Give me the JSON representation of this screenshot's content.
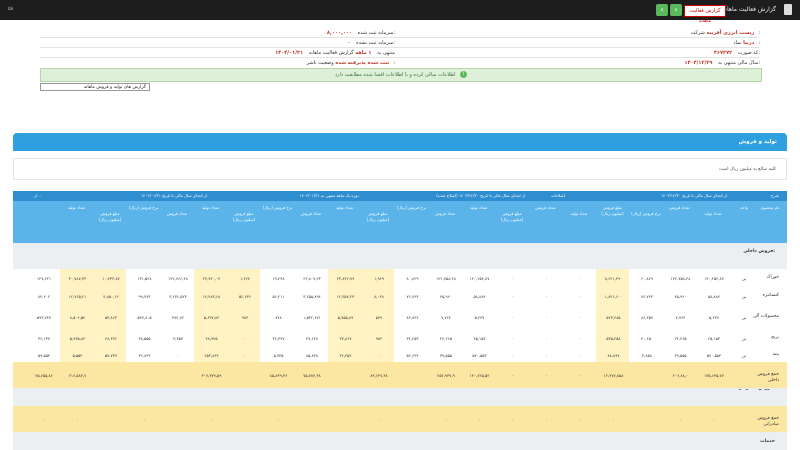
{
  "topbar": {
    "title": "گزارش فعالیت ماهانه",
    "badge": "گزارش فعالیت ماهانه",
    "left_text": "۵۸"
  },
  "info": {
    "company_label": "شرکت:",
    "company_value": "زیست انرژی آفرینه",
    "symbol_label": "نماد:",
    "symbol_value": "دزیتا",
    "code_label": "کد صورت:",
    "code_value": "۴۶۷۳۷۲",
    "year_label": "سال مالی منتهی به:",
    "year_value": "۱۴۰۴/۱۲/۲۹",
    "capital_label": "سرمایه ثبت شده:",
    "capital_value": "۸,۰۰۰,۰۰۰",
    "capital2_label": "سرمایه ثبت نشده:",
    "capital2_value": "۰",
    "report_label": "گزارش فعالیت ماهانه",
    "period_label": "۱ ماهه",
    "period_end_label": "منتهی به",
    "period_end": "۱۴۰۴/۰۱/۳۱",
    "status_label": "وضعیت ناشر:",
    "status_value": "ثبت شده پذیرفته شده",
    "ok_message": "اطلاعات سالی کرده و با اطلاعات افشا شده مطابقت دارد",
    "select_value": "گزارش های تولید و فروش ماهانه"
  },
  "panel": {
    "title": "تولید و فروش",
    "note": "کلیه مبالغ به میلیون ریال است"
  },
  "table": {
    "group_headers": [
      "شرح",
      "از ابتدای سال مالی تا تاریخ ۱۴۰۳/۱۲/۳۰",
      "اصلاحات",
      "از ابتدای سال مالی تا تاریخ ۱۴۰۳/۱۲/۳۰ (اصلاح شده)",
      "دوره یک ماهه منتهی به ۱۴۰۴/۰۱/۳۱",
      "از ابتدای سال مالی تا تاریخ ۱۴۰۴/۰۱/۳۱",
      "از ..."
    ],
    "col_headers": [
      "نام محصول",
      "واحد",
      "تعداد تولید",
      "تعداد فروش",
      "نرخ فروش (ریال)",
      "مبلغ فروش (میلیون ریال)",
      "تعداد تولید",
      "تعداد فروش",
      "مبلغ فروش (میلیون ریال)",
      "تعداد تولید",
      "تعداد فروش",
      "نرخ فروش (ریال)",
      "مبلغ فروش (میلیون ریال)",
      "تعداد تولید",
      "تعداد فروش",
      "نرخ فروش (ریال)",
      "مبلغ فروش (میلیون ریال)",
      "تعداد تولید",
      "تعداد فروش",
      "نرخ فروش (ریال)",
      "مبلغ فروش (میلیون ریال)",
      "تعداد تولید"
    ],
    "section_domestic": "فروش داخلی:",
    "section_export": "فروش صادراتی:",
    "section_services": "خدمات",
    "rows": [
      {
        "label": "خوراک",
        "unit": "تن",
        "cells": [
          "۱۴۰,۲۵۴,۸۷",
          "۱۴۲,۷۵۸,۴۸",
          "۶۰,۸۲۹",
          "۸,۶۲۱,۴۹۰",
          "۰",
          "۰",
          "۰",
          "۱۴۰,۲۵۴,۸۷",
          "۱۴۲,۷۵۸,۴۸",
          "۸۰,۸۲۹",
          "۱,۹۶۹",
          "۲۳,۸۴۲,۷۹",
          "۲۴,۸۰۷,۲۳",
          "۱۹,۲۳۸",
          "۱,۴۶۷",
          "۲۳,۷۴۰,۰۴",
          "۱۲۲,۷۶۶,۴۸",
          "۱۳۱,۵۲۸",
          "۱۰,۴۳۳,۸۷",
          "۳۰,۷۸۷,۳۳",
          "۱۲۷,۶۲۱"
        ]
      },
      {
        "label": "کنسانتره",
        "unit": "تن",
        "cells": [
          "۵۸,۸۸۴",
          "۴۵,۹۶۰",
          "۷۶,۷۴۳",
          "۱,۸۲۶,۶۰۰",
          "۰",
          "۰",
          "۰",
          "۵۸,۸۸۴",
          "۴۵,۹۶۰",
          "۷۶,۷۴۳",
          "۸,۰۲۸",
          "۱۲,۳۵۷,۲۳",
          "۳,۲۵۵,۸۹۴",
          "۵۶,۲۱۱",
          "۵۲,۶۳۶",
          "۱۴,۴۸۳,۶۸",
          "۳,۲۷۶,۵۲۳",
          "۹۹,۷۷۳",
          "۴,۸۵۰,۶۶",
          "۱۲,۷۶۵,۲۱",
          "۸۴,۴۰۲"
        ]
      },
      {
        "label": "محصولات آلی",
        "unit": "تن",
        "cells": [
          "۵,۲۳۷",
          "۷,۷۶۴",
          "۸۶,۳۵۹",
          "۵۲۳,۴۸۵",
          "۰",
          "۰",
          "۰",
          "۵,۲۳۷",
          "۷,۷۶۴",
          "۸۴,۸۳۶",
          "۵۷۹",
          "۵,۷۵۵,۸۹",
          "۱,۵۳۲,۶۷۱",
          "۸۷۸",
          "۹۸۳",
          "۵,۶۳۷,۸۴",
          "۳۸۴,۷۶",
          "۵۳۷,۸۰۵",
          "۵۳,۸۶۳",
          "۸,۵۰۶,۵۴",
          "۵۹۳,۷۴۷"
        ]
      },
      {
        "label": "برنج",
        "unit": "تن",
        "cells": [
          "۲۵,۱۵۳",
          "۲۴,۲۶۵",
          "۴۰,۶۵۰",
          "۵۳۵,۲۵۸",
          "۰",
          "۰",
          "۰",
          "۲۵,۱۵۳",
          "۲۴,۲۶۵",
          "۳۴,۲۵۳",
          "۹۸۲",
          "۳۷,۸۶۷",
          "۴۷,۶۴۸",
          "۳۶,۳۴۷",
          "۰",
          "۲۸,۹۴۵",
          "۳,۳۵۷",
          "۳۸,۵۵۵",
          "۴۸,۳۷۶",
          "۵,۹۳۵,۸۴",
          "۳۶,۶۳۷"
        ]
      },
      {
        "label": "پنبه",
        "unit": "تن",
        "cells": [
          "۵۷۰,۵۵۳",
          "۳۹,۵۵۵",
          "۳,۸۵۸",
          "۸۸,۸۹۷",
          "۰",
          "۰",
          "۰",
          "۵۷۰,۵۵۳",
          "۳۹,۵۵۵",
          "۵۲,۶۳۲",
          "۰",
          "۳۶,۴۵۲",
          "۸۵,۸۳۸",
          "۵,۷۳۵",
          "۰",
          "۲۵۳,۸۶۳",
          "۰",
          "۳۶,۸۴۳",
          "۵۷,۷۳۷",
          "۵,۵۵۴",
          "۵۹,۵۵۳"
        ]
      }
    ],
    "total_domestic": {
      "label": "جمع فروش داخلی",
      "cells": [
        "۱۳۵,۶۴۵,۷۷",
        "۲۰۶,۸۸,۰",
        "",
        "۱۲,۴۷۷,۸۵۸",
        "۰",
        "۰",
        "۰",
        "۱۴۰,۷۲۵,۵۴",
        "۲۵۲,۹۳۷,۹",
        "",
        "۸۳,۶۴۷,۴۸",
        "",
        "۷۵,۷۸۴,۳۸",
        "۸۵,۸۳۹,۳۶",
        "",
        "۳۰۷,۳۷۹,۵۹",
        "",
        "",
        "",
        "۲۱۶,۵۸۳,۷",
        "۲۵,۶۵۵,۸۶"
      ]
    },
    "total_export": {
      "label": "جمع فروش صادراتی",
      "cells": [
        "۰",
        "۰",
        "",
        "۰",
        "۰",
        "۰",
        "۰",
        "۰",
        "۰",
        "",
        "۰",
        "",
        "۰",
        "۰",
        "",
        "۰",
        "",
        "۰",
        "",
        "۰",
        "۰"
      ]
    }
  }
}
